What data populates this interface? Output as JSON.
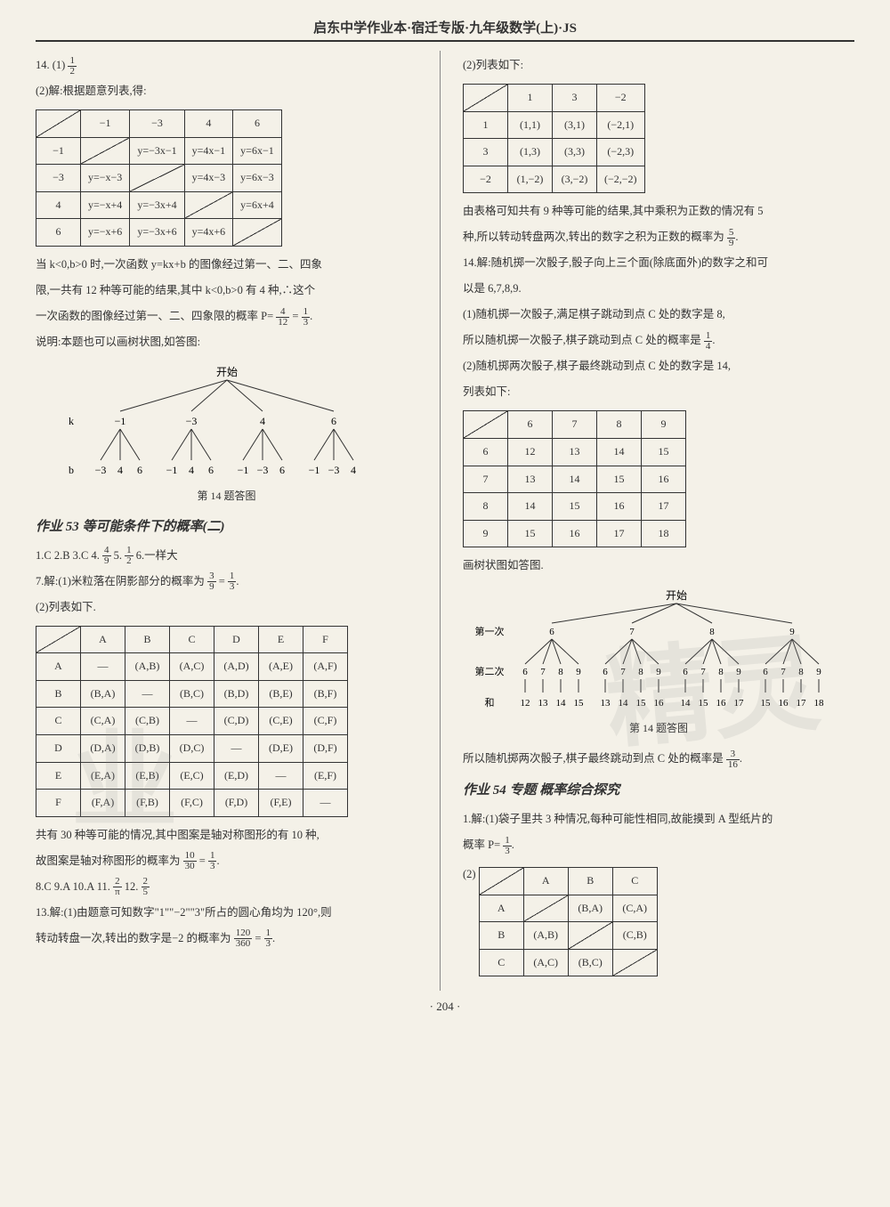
{
  "header": "启东中学作业本·宿迁专版·九年级数学(上)·JS",
  "page_num": "· 204 ·",
  "left": {
    "q14_1": "14. (1)",
    "q14_1_frac": {
      "n": "1",
      "d": "2"
    },
    "q14_2": "(2)解:根据题意列表,得:",
    "table1": {
      "headers": [
        "",
        "−1",
        "−3",
        "4",
        "6"
      ],
      "rows": [
        [
          "−1",
          "",
          "y=−3x−1",
          "y=4x−1",
          "y=6x−1"
        ],
        [
          "−3",
          "y=−x−3",
          "",
          "y=4x−3",
          "y=6x−3"
        ],
        [
          "4",
          "y=−x+4",
          "y=−3x+4",
          "",
          "y=6x+4"
        ],
        [
          "6",
          "y=−x+6",
          "y=−3x+6",
          "y=4x+6",
          ""
        ]
      ]
    },
    "p1": "当 k<0,b>0 时,一次函数 y=kx+b 的图像经过第一、二、四象",
    "p2": "限,一共有 12 种等可能的结果,其中 k<0,b>0 有 4 种,∴这个",
    "p3": "一次函数的图像经过第一、二、四象限的概率 P=",
    "p3_f1": {
      "n": "4",
      "d": "12"
    },
    "p3_eq": "=",
    "p3_f2": {
      "n": "1",
      "d": "3"
    },
    "p4": "说明:本题也可以画树状图,如答图:",
    "tree1_caption": "第 14 题答图",
    "section53": "作业 53  等可能条件下的概率(二)",
    "ans53": "1.C  2.B  3.C  4.",
    "ans53_f1": {
      "n": "4",
      "d": "9"
    },
    "ans53_5": "  5.",
    "ans53_f2": {
      "n": "1",
      "d": "2"
    },
    "ans53_6": "  6.一样大",
    "q7_1": "7.解:(1)米粒落在阴影部分的概率为",
    "q7_f1": {
      "n": "3",
      "d": "9"
    },
    "q7_eq": "=",
    "q7_f2": {
      "n": "1",
      "d": "3"
    },
    "q7_2": "(2)列表如下.",
    "table2": {
      "headers": [
        "",
        "A",
        "B",
        "C",
        "D",
        "E",
        "F"
      ],
      "rows": [
        [
          "A",
          "—",
          "(A,B)",
          "(A,C)",
          "(A,D)",
          "(A,E)",
          "(A,F)"
        ],
        [
          "B",
          "(B,A)",
          "—",
          "(B,C)",
          "(B,D)",
          "(B,E)",
          "(B,F)"
        ],
        [
          "C",
          "(C,A)",
          "(C,B)",
          "—",
          "(C,D)",
          "(C,E)",
          "(C,F)"
        ],
        [
          "D",
          "(D,A)",
          "(D,B)",
          "(D,C)",
          "—",
          "(D,E)",
          "(D,F)"
        ],
        [
          "E",
          "(E,A)",
          "(E,B)",
          "(E,C)",
          "(E,D)",
          "—",
          "(E,F)"
        ],
        [
          "F",
          "(F,A)",
          "(F,B)",
          "(F,C)",
          "(F,D)",
          "(F,E)",
          "—"
        ]
      ]
    },
    "p5": "共有 30 种等可能的情况,其中图案是轴对称图形的有 10 种,",
    "p6": "故图案是轴对称图形的概率为",
    "p6_f1": {
      "n": "10",
      "d": "30"
    },
    "p6_eq": "=",
    "p6_f2": {
      "n": "1",
      "d": "3"
    },
    "ans8": "8.C  9.A  10.A  11.",
    "ans8_f1": {
      "n": "2",
      "d": "π"
    },
    "ans8_12": "  12.",
    "ans8_f2": {
      "n": "2",
      "d": "5"
    },
    "q13": "13.解:(1)由题意可知数字\"1\"\"−2\"\"3\"所占的圆心角均为 120°,则",
    "q13_2": "转动转盘一次,转出的数字是−2 的概率为",
    "q13_f1": {
      "n": "120",
      "d": "360"
    },
    "q13_eq": "=",
    "q13_f2": {
      "n": "1",
      "d": "3"
    }
  },
  "right": {
    "q13_3": "(2)列表如下:",
    "table3": {
      "headers": [
        "",
        "1",
        "3",
        "−2"
      ],
      "rows": [
        [
          "1",
          "(1,1)",
          "(3,1)",
          "(−2,1)"
        ],
        [
          "3",
          "(1,3)",
          "(3,3)",
          "(−2,3)"
        ],
        [
          "−2",
          "(1,−2)",
          "(3,−2)",
          "(−2,−2)"
        ]
      ]
    },
    "p1": "由表格可知共有 9 种等可能的结果,其中乘积为正数的情况有 5",
    "p2": "种,所以转动转盘两次,转出的数字之积为正数的概率为",
    "p2_f": {
      "n": "5",
      "d": "9"
    },
    "q14": "14.解:随机掷一次骰子,骰子向上三个面(除底面外)的数字之和可",
    "q14_2": "以是 6,7,8,9.",
    "q14_3": "(1)随机掷一次骰子,满足棋子跳动到点 C 处的数字是 8,",
    "q14_4": "所以随机掷一次骰子,棋子跳动到点 C 处的概率是",
    "q14_f": {
      "n": "1",
      "d": "4"
    },
    "q14_5": "(2)随机掷两次骰子,棋子最终跳动到点 C 处的数字是 14,",
    "q14_6": "列表如下:",
    "table4": {
      "headers": [
        "",
        "6",
        "7",
        "8",
        "9"
      ],
      "rows": [
        [
          "6",
          "12",
          "13",
          "14",
          "15"
        ],
        [
          "7",
          "13",
          "14",
          "15",
          "16"
        ],
        [
          "8",
          "14",
          "15",
          "16",
          "17"
        ],
        [
          "9",
          "15",
          "16",
          "17",
          "18"
        ]
      ]
    },
    "p3": "画树状图如答图.",
    "tree2_caption": "第 14 题答图",
    "p4": "所以随机掷两次骰子,棋子最终跳动到点 C 处的概率是",
    "p4_f": {
      "n": "3",
      "d": "16"
    },
    "section54": "作业 54  专题  概率综合探究",
    "q1": "1.解:(1)袋子里共 3 种情况,每种可能性相同,故能摸到 A 型纸片的",
    "q1_2": "概率 P=",
    "q1_f": {
      "n": "1",
      "d": "3"
    },
    "q1_3": "(2)",
    "table5": {
      "headers": [
        "",
        "A",
        "B",
        "C"
      ],
      "rows": [
        [
          "A",
          "",
          "(B,A)",
          "(C,A)"
        ],
        [
          "B",
          "(A,B)",
          "",
          "(C,B)"
        ],
        [
          "C",
          "(A,C)",
          "(B,C)",
          ""
        ]
      ]
    }
  },
  "tree1": {
    "root": "开始",
    "k_label": "k",
    "b_label": "b",
    "k_vals": [
      "−1",
      "−3",
      "4",
      "6"
    ],
    "b_vals": [
      "−3",
      "4",
      "6",
      "−1",
      "4",
      "6",
      "−1",
      "−3",
      "6",
      "−1",
      "−3",
      "4"
    ]
  },
  "tree2": {
    "root": "开始",
    "level1_label": "第一次",
    "level2_label": "第二次",
    "sum_label": "和",
    "l1": [
      "6",
      "7",
      "8",
      "9"
    ],
    "l2": [
      "6",
      "7",
      "8",
      "9",
      "6",
      "7",
      "8",
      "9",
      "6",
      "7",
      "8",
      "9",
      "6",
      "7",
      "8",
      "9"
    ],
    "sums": [
      "12",
      "13",
      "14",
      "15",
      "13",
      "14",
      "15",
      "16",
      "14",
      "15",
      "16",
      "17",
      "15",
      "16",
      "17",
      "18"
    ]
  },
  "colors": {
    "bg": "#f4f1e8",
    "text": "#333333",
    "border": "#333333"
  }
}
